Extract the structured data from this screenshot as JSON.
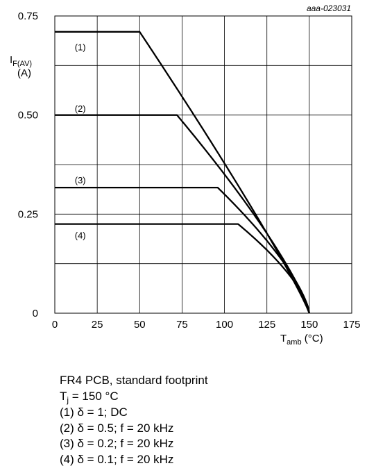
{
  "figure_id": "aaa-023031",
  "chart_data": {
    "type": "line",
    "ylabel_main": "I",
    "ylabel_sub": "F(AV)",
    "ylabel_unit": "(A)",
    "xlabel_main": "T",
    "xlabel_sub": "amb",
    "xlabel_unit": "(°C)",
    "xlim": [
      0,
      175
    ],
    "ylim": [
      0,
      0.75
    ],
    "x_ticks": [
      0,
      25,
      50,
      75,
      100,
      125,
      150,
      175
    ],
    "x_tick_labels": [
      "0",
      "25",
      "50",
      "75",
      "100",
      "125",
      "150",
      "175"
    ],
    "y_ticks": [
      0,
      0.25,
      0.5,
      0.75
    ],
    "y_tick_labels": [
      "0",
      "0.25",
      "0.50",
      "0.75"
    ],
    "y_grid": [
      0,
      0.125,
      0.25,
      0.375,
      0.5,
      0.625,
      0.75
    ],
    "grid": true,
    "series": [
      {
        "label": "(1)",
        "label_pos": [
          15,
          0.67
        ],
        "points": [
          [
            0,
            0.71
          ],
          [
            50,
            0.71
          ],
          [
            150,
            0
          ]
        ],
        "power": 1.1
      },
      {
        "label": "(2)",
        "label_pos": [
          15,
          0.515
        ],
        "points": [
          [
            0,
            0.5
          ],
          [
            72,
            0.5
          ],
          [
            150,
            0
          ]
        ],
        "power": 1.25
      },
      {
        "label": "(3)",
        "label_pos": [
          15,
          0.335
        ],
        "points": [
          [
            0,
            0.317
          ],
          [
            96,
            0.317
          ],
          [
            150,
            0
          ]
        ],
        "power": 1.4
      },
      {
        "label": "(4)",
        "label_pos": [
          15,
          0.195
        ],
        "points": [
          [
            0,
            0.225
          ],
          [
            108,
            0.225
          ],
          [
            150,
            0
          ]
        ],
        "power": 1.5
      }
    ]
  },
  "notes": {
    "line1": "FR4 PCB, standard footprint",
    "line2_main": "T",
    "line2_sub": "j",
    "line2_rest": " = 150 °C",
    "line3": "(1) δ = 1; DC",
    "line4": "(2) δ = 0.5; f = 20 kHz",
    "line5": "(3) δ = 0.2; f = 20 kHz",
    "line6": "(4) δ = 0.1; f = 20 kHz"
  }
}
